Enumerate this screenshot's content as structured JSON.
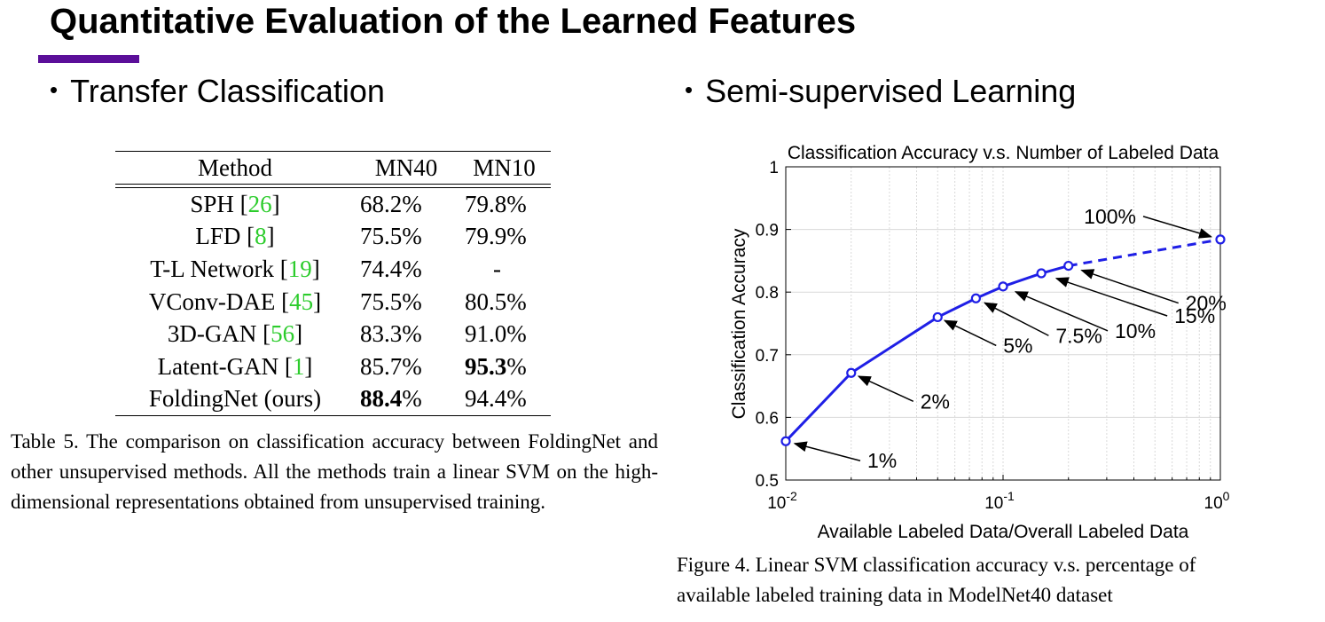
{
  "slide": {
    "title": "Quantitative Evaluation of the Learned Features",
    "accent_color": "#5b0f99"
  },
  "left": {
    "bullet": "Transfer Classification",
    "table": {
      "headers": [
        "Method",
        "MN40",
        "MN10"
      ],
      "rows": [
        {
          "method": "SPH",
          "cite": "26",
          "mn40": "68.2%",
          "mn10": "79.8%",
          "bold40": "",
          "bold10": ""
        },
        {
          "method": "LFD",
          "cite": "8",
          "mn40": "75.5%",
          "mn10": "79.9%"
        },
        {
          "method": "T-L Network",
          "cite": "19",
          "mn40": "74.4%",
          "mn10": "-"
        },
        {
          "method": "VConv-DAE",
          "cite": "45",
          "mn40": "75.5%",
          "mn10": "80.5%"
        },
        {
          "method": "3D-GAN",
          "cite": "56",
          "mn40": "83.3%",
          "mn10": "91.0%"
        },
        {
          "method": "Latent-GAN",
          "cite": "1",
          "mn40": "85.7%",
          "mn10_bold": "95.3",
          "mn10_rest": "%"
        },
        {
          "method": "FoldingNet (ours)",
          "mn40_bold": "88.4",
          "mn40_rest": "%",
          "mn10": "94.4%"
        }
      ]
    },
    "caption": "Table 5. The comparison on classification accuracy between FoldingNet and other unsupervised methods. All the methods train a linear SVM on the high-dimensional representations obtained from unsupervised training."
  },
  "right": {
    "bullet": "Semi-supervised Learning",
    "caption_line1": "Figure 4. Linear SVM classification accuracy v.s. percentage of",
    "caption_line2": "available labeled training data in ModelNet40 dataset"
  },
  "chart_data": {
    "type": "line",
    "title": "Classification Accuracy v.s. Number of Labeled Data",
    "xlabel": "Available Labeled Data/Overall Labeled Data",
    "ylabel": "Classification Accuracy",
    "xscale": "log",
    "xlim": [
      0.01,
      1
    ],
    "ylim": [
      0.5,
      1
    ],
    "x_tick_labels": [
      "10",
      "10",
      "10"
    ],
    "x_tick_exponents": [
      "-2",
      "-1",
      "0"
    ],
    "y_tick_labels": [
      "0.5",
      "0.6",
      "0.7",
      "0.8",
      "0.9",
      "1"
    ],
    "grid": true,
    "series_color": "#1f1fe6",
    "series": [
      {
        "name": "accuracy",
        "x": [
          0.01,
          0.02,
          0.05,
          0.075,
          0.1,
          0.15,
          0.2,
          1.0
        ],
        "y": [
          0.562,
          0.671,
          0.76,
          0.79,
          0.809,
          0.83,
          0.842,
          0.884
        ],
        "labels": [
          "1%",
          "2%",
          "5%",
          "7.5%",
          "10%",
          "15%",
          "20%",
          "100%"
        ],
        "dashed_from_index": 6
      }
    ]
  }
}
